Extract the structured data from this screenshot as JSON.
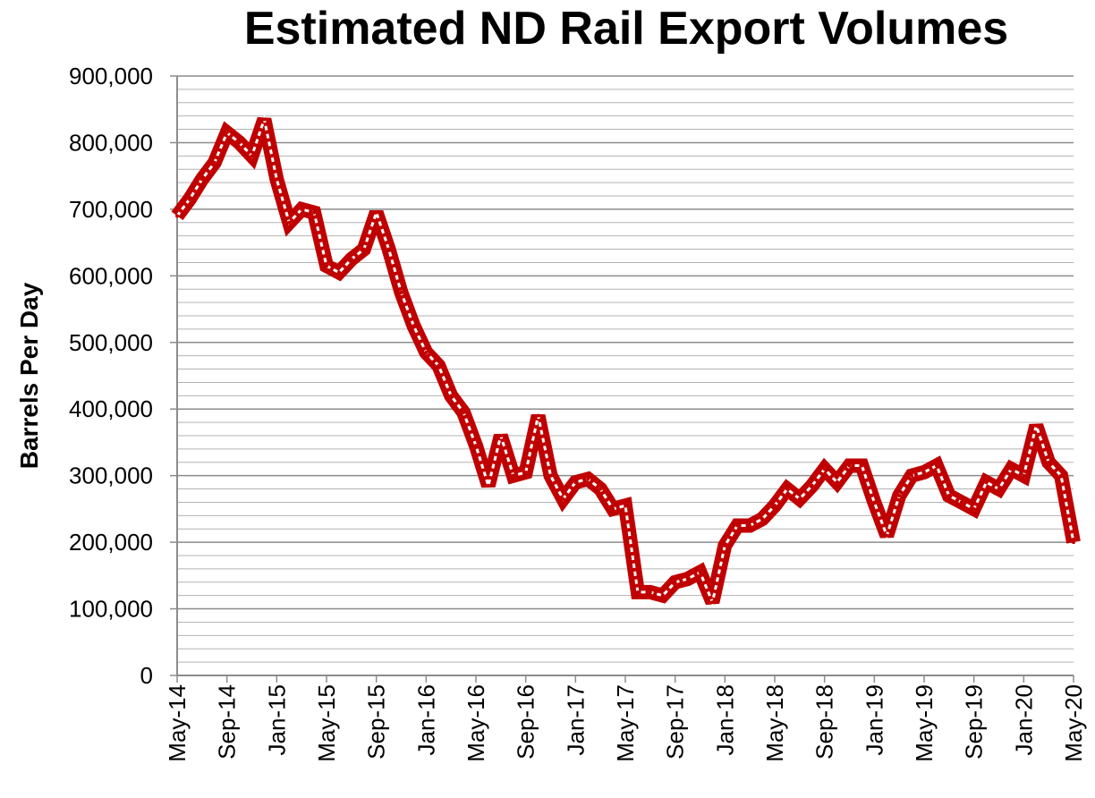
{
  "chart_data": {
    "type": "line",
    "title": "Estimated ND Rail Export Volumes",
    "xlabel": "",
    "ylabel": "Barrels Per Day",
    "ylim": [
      0,
      900000
    ],
    "yticks": [
      0,
      100000,
      200000,
      300000,
      400000,
      500000,
      600000,
      700000,
      800000,
      900000
    ],
    "ytick_labels": [
      "0",
      "100,000",
      "200,000",
      "300,000",
      "400,000",
      "500,000",
      "600,000",
      "700,000",
      "800,000",
      "900,000"
    ],
    "xtick_labels": [
      "May-14",
      "Sep-14",
      "Jan-15",
      "May-15",
      "Sep-15",
      "Jan-16",
      "May-16",
      "Sep-16",
      "Jan-17",
      "May-17",
      "Sep-17",
      "Jan-18",
      "May-18",
      "Sep-18",
      "Jan-19",
      "May-19",
      "Sep-19",
      "Jan-20",
      "May-20"
    ],
    "grid": true,
    "series_color": "#c00000",
    "series": [
      {
        "values": [
          690000,
          715000,
          745000,
          770000,
          815000,
          800000,
          780000,
          835000,
          745000,
          680000,
          700000,
          695000,
          615000,
          605000,
          625000,
          640000,
          695000,
          640000,
          575000,
          525000,
          485000,
          465000,
          420000,
          395000,
          345000,
          285000,
          360000,
          300000,
          305000,
          390000,
          300000,
          265000,
          290000,
          295000,
          280000,
          250000,
          255000,
          125000,
          125000,
          120000,
          140000,
          145000,
          155000,
          110000,
          195000,
          225000,
          225000,
          235000,
          255000,
          280000,
          265000,
          285000,
          310000,
          290000,
          315000,
          315000,
          260000,
          210000,
          270000,
          300000,
          305000,
          315000,
          270000,
          260000,
          250000,
          290000,
          280000,
          310000,
          300000,
          375000,
          320000,
          300000,
          200000
        ]
      }
    ]
  }
}
